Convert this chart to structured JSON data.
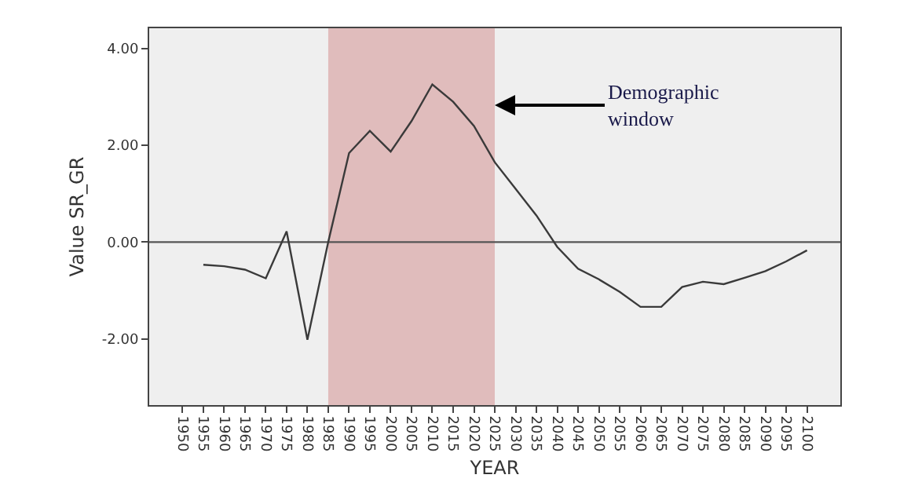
{
  "chart_data": {
    "type": "line",
    "xlabel": "YEAR",
    "ylabel": "Value SR_GR",
    "x": [
      1955,
      1960,
      1965,
      1970,
      1975,
      1980,
      1985,
      1990,
      1995,
      2000,
      2005,
      2010,
      2015,
      2020,
      2025,
      2030,
      2035,
      2040,
      2045,
      2050,
      2055,
      2060,
      2065,
      2070,
      2075,
      2080,
      2085,
      2090,
      2095,
      2100
    ],
    "series": [
      {
        "color": "#3a3a3a",
        "values": [
          -0.47,
          -0.5,
          -0.57,
          -0.75,
          0.22,
          -2.02,
          0.0,
          1.84,
          2.3,
          1.87,
          2.5,
          3.26,
          2.9,
          2.4,
          1.65,
          1.1,
          0.55,
          -0.1,
          -0.55,
          -0.77,
          -1.03,
          -1.34,
          -1.34,
          -0.93,
          -0.82,
          -0.87,
          -0.74,
          -0.6,
          -0.4,
          -0.17
        ]
      }
    ],
    "xlim": [
      1942,
      2108
    ],
    "xticks": [
      1950,
      1955,
      1960,
      1965,
      1970,
      1975,
      1980,
      1985,
      1990,
      1995,
      2000,
      2005,
      2010,
      2015,
      2020,
      2025,
      2030,
      2035,
      2040,
      2045,
      2050,
      2055,
      2060,
      2065,
      2070,
      2075,
      2080,
      2085,
      2090,
      2095,
      2100
    ],
    "ylim": [
      -3.37,
      4.42
    ],
    "yticks": [
      {
        "value": -2,
        "label": "-2.00"
      },
      {
        "value": 0,
        "label": "0.00"
      },
      {
        "value": 2,
        "label": "2.00"
      },
      {
        "value": 4,
        "label": "4.00"
      }
    ],
    "ref_lines": [
      {
        "axis": "y",
        "value": 0,
        "color": "#555555"
      }
    ],
    "bands": [
      {
        "axis": "x",
        "from": 1985,
        "to": 2025,
        "color": "#e0bcbc"
      }
    ],
    "annotations": [
      {
        "text": "Demographic\nwindow",
        "x": 2025,
        "y": 2.83
      }
    ],
    "grid": false,
    "marker": "none",
    "line_style": "solid"
  }
}
